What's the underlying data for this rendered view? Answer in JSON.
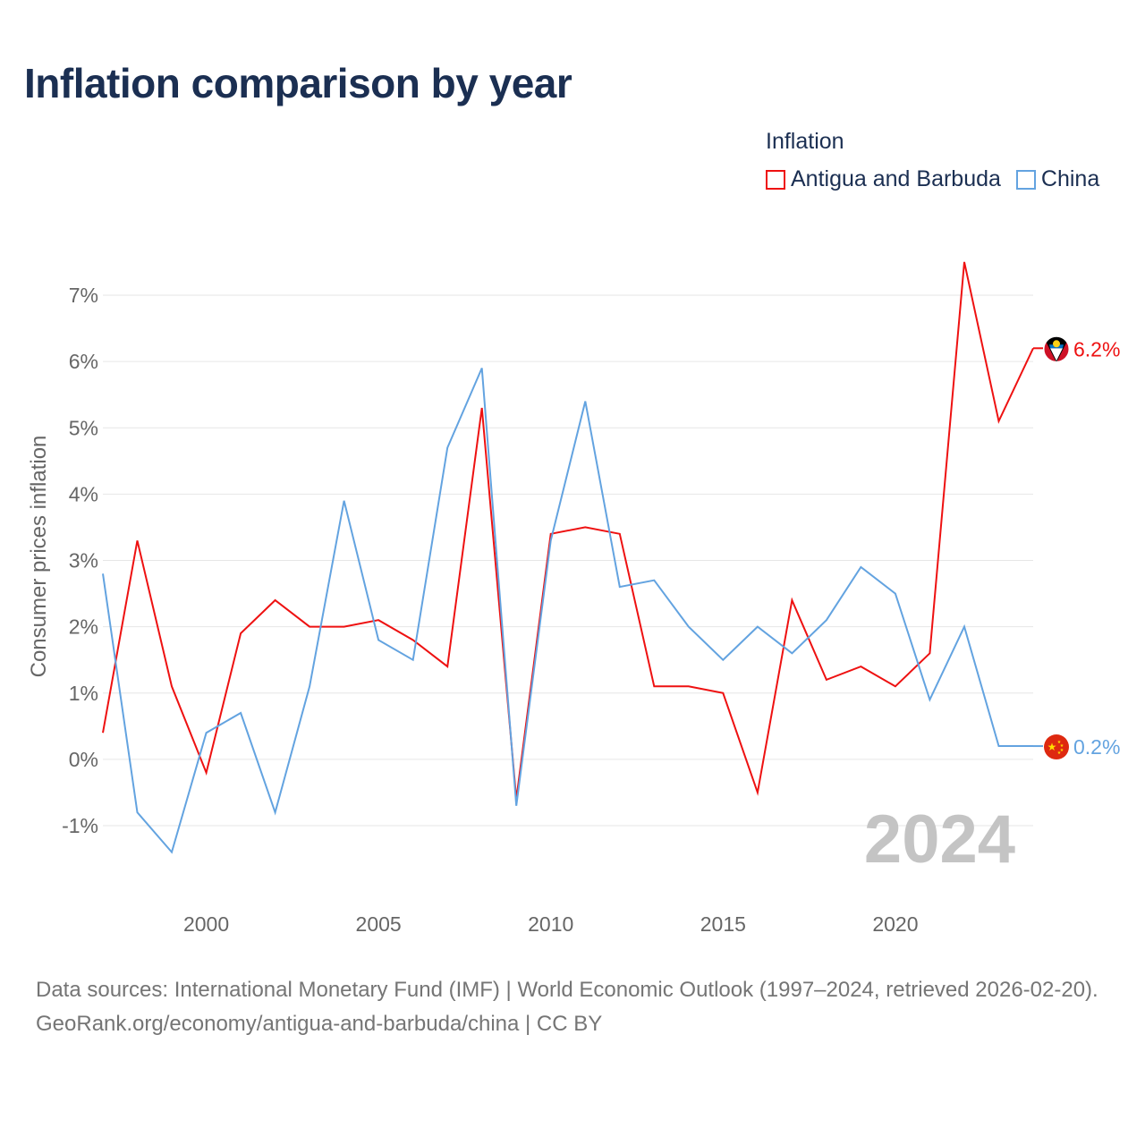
{
  "title": "Inflation comparison by year",
  "legend": {
    "title": "Inflation",
    "items": [
      {
        "label": "Antigua and Barbuda",
        "color": "#ee1111"
      },
      {
        "label": "China",
        "color": "#63a3e0"
      }
    ]
  },
  "footer": {
    "sources": "Data sources: International Monetary Fund (IMF) | World Economic Outlook (1997–2024, retrieved 2026-02-20).",
    "credit": "GeoRank.org/economy/antigua-and-barbuda/china | CC BY"
  },
  "chart_data": {
    "type": "line",
    "title": "Inflation comparison by year",
    "xlabel": "",
    "ylabel": "Consumer prices inflation",
    "xlim": [
      1997,
      2024
    ],
    "ylim": [
      -2,
      7.7
    ],
    "y_ticks": [
      -1,
      0,
      1,
      2,
      3,
      4,
      5,
      6,
      7
    ],
    "y_tick_labels": [
      "-1%",
      "0%",
      "1%",
      "2%",
      "3%",
      "4%",
      "5%",
      "6%",
      "7%"
    ],
    "x_ticks": [
      2000,
      2005,
      2010,
      2015,
      2020
    ],
    "x_tick_labels": [
      "2000",
      "2005",
      "2010",
      "2015",
      "2020"
    ],
    "grid": true,
    "legend_position": "top-right",
    "year_watermark": "2024",
    "x": [
      1997,
      1998,
      1999,
      2000,
      2001,
      2002,
      2003,
      2004,
      2005,
      2006,
      2007,
      2008,
      2009,
      2010,
      2011,
      2012,
      2013,
      2014,
      2015,
      2016,
      2017,
      2018,
      2019,
      2020,
      2021,
      2022,
      2023,
      2024
    ],
    "series": [
      {
        "name": "Antigua and Barbuda",
        "color": "#ee1111",
        "values": [
          0.4,
          3.3,
          1.1,
          -0.2,
          1.9,
          2.4,
          2.0,
          2.0,
          2.1,
          1.8,
          1.4,
          5.3,
          -0.6,
          3.4,
          3.5,
          3.4,
          1.1,
          1.1,
          1.0,
          -0.5,
          2.4,
          1.2,
          1.4,
          1.1,
          1.6,
          7.5,
          5.1,
          6.2
        ],
        "end_label": "6.2%",
        "flag": "antigua-and-barbuda-flag-icon"
      },
      {
        "name": "China",
        "color": "#63a3e0",
        "values": [
          2.8,
          -0.8,
          -1.4,
          0.4,
          0.7,
          -0.8,
          1.1,
          3.9,
          1.8,
          1.5,
          4.7,
          5.9,
          -0.7,
          3.3,
          5.4,
          2.6,
          2.7,
          2.0,
          1.5,
          2.0,
          1.6,
          2.1,
          2.9,
          2.5,
          0.9,
          2.0,
          0.2,
          0.2
        ],
        "end_label": "0.2%",
        "flag": "china-flag-icon"
      }
    ]
  }
}
